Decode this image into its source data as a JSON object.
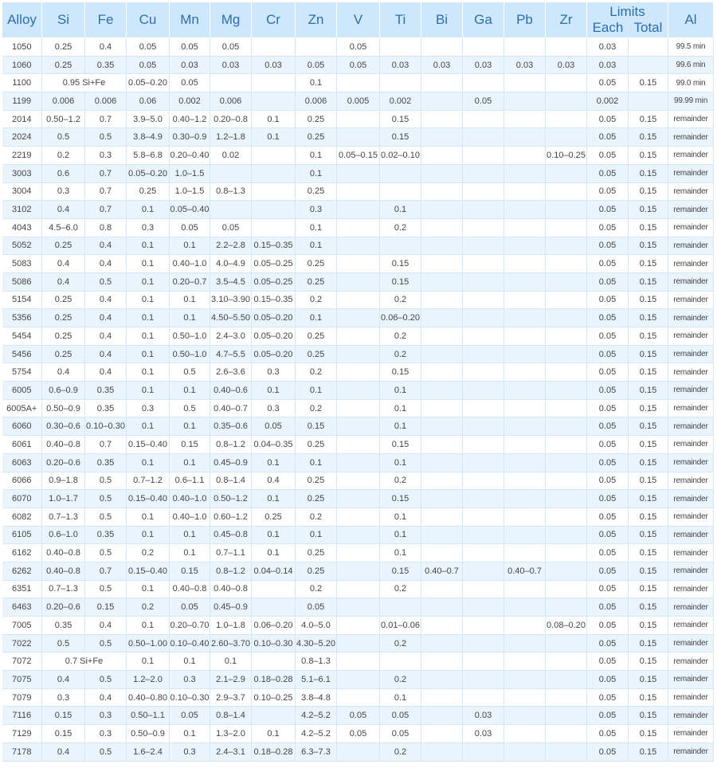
{
  "headers": [
    "Alloy",
    "Si",
    "Fe",
    "Cu",
    "Mn",
    "Mg",
    "Cr",
    "Zn",
    "V",
    "Ti",
    "Bi",
    "Ga",
    "Pb",
    "Zr",
    "Limits",
    "Each",
    "Total",
    "Al"
  ],
  "rows": [
    {
      "alloy": "1050",
      "si": "0.25",
      "fe": "0.4",
      "cu": "0.05",
      "mn": "0.05",
      "mg": "0.05",
      "cr": "",
      "zn": "",
      "v": "0.05",
      "ti": "",
      "bi": "",
      "ga": "",
      "pb": "",
      "zr": "",
      "each": "0.03",
      "total": "",
      "al": "99.5 min"
    },
    {
      "alloy": "1060",
      "si": "0.25",
      "fe": "0.35",
      "cu": "0.05",
      "mn": "0.03",
      "mg": "0.03",
      "cr": "0.03",
      "zn": "0.05",
      "v": "0.05",
      "ti": "0.03",
      "bi": "0.03",
      "ga": "0.03",
      "pb": "0.03",
      "zr": "0.03",
      "each": "0.03",
      "total": "",
      "al": "99.6 min"
    },
    {
      "alloy": "1100",
      "sife": "0.95 Si+Fe",
      "cu": "0.05–0.20",
      "mn": "0.05",
      "mg": "",
      "cr": "",
      "zn": "0.1",
      "v": "",
      "ti": "",
      "bi": "",
      "ga": "",
      "pb": "",
      "zr": "",
      "each": "0.05",
      "total": "0.15",
      "al": "99.0 min"
    },
    {
      "alloy": "1199",
      "si": "0.006",
      "fe": "0.006",
      "cu": "0.06",
      "mn": "0.002",
      "mg": "0.006",
      "cr": "",
      "zn": "0.006",
      "v": "0.005",
      "ti": "0.002",
      "bi": "",
      "ga": "0.05",
      "pb": "",
      "zr": "",
      "each": "0.002",
      "total": "",
      "al": "99.99 min"
    },
    {
      "alloy": "2014",
      "si": "0.50–1.2",
      "fe": "0.7",
      "cu": "3.9–5.0",
      "mn": "0.40–1.2",
      "mg": "0.20–0.8",
      "cr": "0.1",
      "zn": "0.25",
      "v": "",
      "ti": "0.15",
      "bi": "",
      "ga": "",
      "pb": "",
      "zr": "",
      "each": "0.05",
      "total": "0.15",
      "al": "remainder"
    },
    {
      "alloy": "2024",
      "si": "0.5",
      "fe": "0.5",
      "cu": "3.8–4.9",
      "mn": "0.30–0.9",
      "mg": "1.2–1.8",
      "cr": "0.1",
      "zn": "0.25",
      "v": "",
      "ti": "0.15",
      "bi": "",
      "ga": "",
      "pb": "",
      "zr": "",
      "each": "0.05",
      "total": "0.15",
      "al": "remainder"
    },
    {
      "alloy": "2219",
      "si": "0.2",
      "fe": "0.3",
      "cu": "5.8–6.8",
      "mn": "0.20–0.40",
      "mg": "0.02",
      "cr": "",
      "zn": "0.1",
      "v": "0.05–0.15",
      "ti": "0.02–0.10",
      "bi": "",
      "ga": "",
      "pb": "",
      "zr": "0.10–0.25",
      "each": "0.05",
      "total": "0.15",
      "al": "remainder"
    },
    {
      "alloy": "3003",
      "si": "0.6",
      "fe": "0.7",
      "cu": "0.05–0.20",
      "mn": "1.0–1.5",
      "mg": "",
      "cr": "",
      "zn": "0.1",
      "v": "",
      "ti": "",
      "bi": "",
      "ga": "",
      "pb": "",
      "zr": "",
      "each": "0.05",
      "total": "0.15",
      "al": "remainder"
    },
    {
      "alloy": "3004",
      "si": "0.3",
      "fe": "0.7",
      "cu": "0.25",
      "mn": "1.0–1.5",
      "mg": "0.8–1.3",
      "cr": "",
      "zn": "0.25",
      "v": "",
      "ti": "",
      "bi": "",
      "ga": "",
      "pb": "",
      "zr": "",
      "each": "0.05",
      "total": "0.15",
      "al": "remainder"
    },
    {
      "alloy": "3102",
      "si": "0.4",
      "fe": "0.7",
      "cu": "0.1",
      "mn": "0.05–0.40",
      "mg": "",
      "cr": "",
      "zn": "0.3",
      "v": "",
      "ti": "0.1",
      "bi": "",
      "ga": "",
      "pb": "",
      "zr": "",
      "each": "0.05",
      "total": "0.15",
      "al": "remainder"
    },
    {
      "alloy": "4043",
      "si": "4.5–6.0",
      "fe": "0.8",
      "cu": "0.3",
      "mn": "0.05",
      "mg": "0.05",
      "cr": "",
      "zn": "0.1",
      "v": "",
      "ti": "0.2",
      "bi": "",
      "ga": "",
      "pb": "",
      "zr": "",
      "each": "0.05",
      "total": "0.15",
      "al": "remainder"
    },
    {
      "alloy": "5052",
      "si": "0.25",
      "fe": "0.4",
      "cu": "0.1",
      "mn": "0.1",
      "mg": "2.2–2.8",
      "cr": "0.15–0.35",
      "zn": "0.1",
      "v": "",
      "ti": "",
      "bi": "",
      "ga": "",
      "pb": "",
      "zr": "",
      "each": "0.05",
      "total": "0.15",
      "al": "remainder"
    },
    {
      "alloy": "5083",
      "si": "0.4",
      "fe": "0.4",
      "cu": "0.1",
      "mn": "0.40–1.0",
      "mg": "4.0–4.9",
      "cr": "0.05–0.25",
      "zn": "0.25",
      "v": "",
      "ti": "0.15",
      "bi": "",
      "ga": "",
      "pb": "",
      "zr": "",
      "each": "0.05",
      "total": "0.15",
      "al": "remainder"
    },
    {
      "alloy": "5086",
      "si": "0.4",
      "fe": "0.5",
      "cu": "0.1",
      "mn": "0.20–0.7",
      "mg": "3.5–4.5",
      "cr": "0.05–0.25",
      "zn": "0.25",
      "v": "",
      "ti": "0.15",
      "bi": "",
      "ga": "",
      "pb": "",
      "zr": "",
      "each": "0.05",
      "total": "0.15",
      "al": "remainder"
    },
    {
      "alloy": "5154",
      "si": "0.25",
      "fe": "0.4",
      "cu": "0.1",
      "mn": "0.1",
      "mg": "3.10–3.90",
      "cr": "0.15–0.35",
      "zn": "0.2",
      "v": "",
      "ti": "0.2",
      "bi": "",
      "ga": "",
      "pb": "",
      "zr": "",
      "each": "0.05",
      "total": "0.15",
      "al": "remainder"
    },
    {
      "alloy": "5356",
      "si": "0.25",
      "fe": "0.4",
      "cu": "0.1",
      "mn": "0.1",
      "mg": "4.50–5.50",
      "cr": "0.05–0.20",
      "zn": "0.1",
      "v": "",
      "ti": "0.06–0.20",
      "bi": "",
      "ga": "",
      "pb": "",
      "zr": "",
      "each": "0.05",
      "total": "0.15",
      "al": "remainder"
    },
    {
      "alloy": "5454",
      "si": "0.25",
      "fe": "0.4",
      "cu": "0.1",
      "mn": "0.50–1.0",
      "mg": "2.4–3.0",
      "cr": "0.05–0.20",
      "zn": "0.25",
      "v": "",
      "ti": "0.2",
      "bi": "",
      "ga": "",
      "pb": "",
      "zr": "",
      "each": "0.05",
      "total": "0.15",
      "al": "remainder"
    },
    {
      "alloy": "5456",
      "si": "0.25",
      "fe": "0.4",
      "cu": "0.1",
      "mn": "0.50–1.0",
      "mg": "4.7–5.5",
      "cr": "0.05–0.20",
      "zn": "0.25",
      "v": "",
      "ti": "0.2",
      "bi": "",
      "ga": "",
      "pb": "",
      "zr": "",
      "each": "0.05",
      "total": "0.15",
      "al": "remainder"
    },
    {
      "alloy": "5754",
      "si": "0.4",
      "fe": "0.4",
      "cu": "0.1",
      "mn": "0.5",
      "mg": "2.6–3.6",
      "cr": "0.3",
      "zn": "0.2",
      "v": "",
      "ti": "0.15",
      "bi": "",
      "ga": "",
      "pb": "",
      "zr": "",
      "each": "0.05",
      "total": "0.15",
      "al": "remainder"
    },
    {
      "alloy": "6005",
      "si": "0.6–0.9",
      "fe": "0.35",
      "cu": "0.1",
      "mn": "0.1",
      "mg": "0.40–0.6",
      "cr": "0.1",
      "zn": "0.1",
      "v": "",
      "ti": "0.1",
      "bi": "",
      "ga": "",
      "pb": "",
      "zr": "",
      "each": "0.05",
      "total": "0.15",
      "al": "remainder"
    },
    {
      "alloy": "6005A+",
      "si": "0.50–0.9",
      "fe": "0.35",
      "cu": "0.3",
      "mn": "0.5",
      "mg": "0.40–0.7",
      "cr": "0.3",
      "zn": "0.2",
      "v": "",
      "ti": "0.1",
      "bi": "",
      "ga": "",
      "pb": "",
      "zr": "",
      "each": "0.05",
      "total": "0.15",
      "al": "remainder"
    },
    {
      "alloy": "6060",
      "si": "0.30–0.6",
      "fe": "0.10–0.30",
      "cu": "0.1",
      "mn": "0.1",
      "mg": "0.35–0.6",
      "cr": "0.05",
      "zn": "0.15",
      "v": "",
      "ti": "0.1",
      "bi": "",
      "ga": "",
      "pb": "",
      "zr": "",
      "each": "0.05",
      "total": "0.15",
      "al": "remainder"
    },
    {
      "alloy": "6061",
      "si": "0.40–0.8",
      "fe": "0.7",
      "cu": "0.15–0.40",
      "mn": "0.15",
      "mg": "0.8–1.2",
      "cr": "0.04–0.35",
      "zn": "0.25",
      "v": "",
      "ti": "0.15",
      "bi": "",
      "ga": "",
      "pb": "",
      "zr": "",
      "each": "0.05",
      "total": "0.15",
      "al": "remainder"
    },
    {
      "alloy": "6063",
      "si": "0.20–0.6",
      "fe": "0.35",
      "cu": "0.1",
      "mn": "0.1",
      "mg": "0.45–0.9",
      "cr": "0.1",
      "zn": "0.1",
      "v": "",
      "ti": "0.1",
      "bi": "",
      "ga": "",
      "pb": "",
      "zr": "",
      "each": "0.05",
      "total": "0.15",
      "al": "remainder"
    },
    {
      "alloy": "6066",
      "si": "0.9–1.8",
      "fe": "0.5",
      "cu": "0.7–1.2",
      "mn": "0.6–1.1",
      "mg": "0.8–1.4",
      "cr": "0.4",
      "zn": "0.25",
      "v": "",
      "ti": "0.2",
      "bi": "",
      "ga": "",
      "pb": "",
      "zr": "",
      "each": "0.05",
      "total": "0.15",
      "al": "remainder"
    },
    {
      "alloy": "6070",
      "si": "1.0–1.7",
      "fe": "0.5",
      "cu": "0.15–0.40",
      "mn": "0.40–1.0",
      "mg": "0.50–1.2",
      "cr": "0.1",
      "zn": "0.25",
      "v": "",
      "ti": "0.15",
      "bi": "",
      "ga": "",
      "pb": "",
      "zr": "",
      "each": "0.05",
      "total": "0.15",
      "al": "remainder"
    },
    {
      "alloy": "6082",
      "si": "0.7–1.3",
      "fe": "0.5",
      "cu": "0.1",
      "mn": "0.40–1.0",
      "mg": "0.60–1.2",
      "cr": "0.25",
      "zn": "0.2",
      "v": "",
      "ti": "0.1",
      "bi": "",
      "ga": "",
      "pb": "",
      "zr": "",
      "each": "0.05",
      "total": "0.15",
      "al": "remainder"
    },
    {
      "alloy": "6105",
      "si": "0.6–1.0",
      "fe": "0.35",
      "cu": "0.1",
      "mn": "0.1",
      "mg": "0.45–0.8",
      "cr": "0.1",
      "zn": "0.1",
      "v": "",
      "ti": "0.1",
      "bi": "",
      "ga": "",
      "pb": "",
      "zr": "",
      "each": "0.05",
      "total": "0.15",
      "al": "remainder"
    },
    {
      "alloy": "6162",
      "si": "0.40–0.8",
      "fe": "0.5",
      "cu": "0.2",
      "mn": "0.1",
      "mg": "0.7–1.1",
      "cr": "0.1",
      "zn": "0.25",
      "v": "",
      "ti": "0.1",
      "bi": "",
      "ga": "",
      "pb": "",
      "zr": "",
      "each": "0.05",
      "total": "0.15",
      "al": "remainder"
    },
    {
      "alloy": "6262",
      "si": "0.40–0.8",
      "fe": "0.7",
      "cu": "0.15–0.40",
      "mn": "0.15",
      "mg": "0.8–1.2",
      "cr": "0.04–0.14",
      "zn": "0.25",
      "v": "",
      "ti": "0.15",
      "bi": "0.40–0.7",
      "ga": "",
      "pb": "0.40–0.7",
      "zr": "",
      "each": "0.05",
      "total": "0.15",
      "al": "remainder"
    },
    {
      "alloy": "6351",
      "si": "0.7–1.3",
      "fe": "0.5",
      "cu": "0.1",
      "mn": "0.40–0.8",
      "mg": "0.40–0.8",
      "cr": "",
      "zn": "0.2",
      "v": "",
      "ti": "0.2",
      "bi": "",
      "ga": "",
      "pb": "",
      "zr": "",
      "each": "0.05",
      "total": "0.15",
      "al": "remainder"
    },
    {
      "alloy": "6463",
      "si": "0.20–0.6",
      "fe": "0.15",
      "cu": "0.2",
      "mn": "0.05",
      "mg": "0.45–0.9",
      "cr": "",
      "zn": "0.05",
      "v": "",
      "ti": "",
      "bi": "",
      "ga": "",
      "pb": "",
      "zr": "",
      "each": "0.05",
      "total": "0.15",
      "al": "remainder"
    },
    {
      "alloy": "7005",
      "si": "0.35",
      "fe": "0.4",
      "cu": "0.1",
      "mn": "0.20–0.70",
      "mg": "1.0–1.8",
      "cr": "0.06–0.20",
      "zn": "4.0–5.0",
      "v": "",
      "ti": "0.01–0.06",
      "bi": "",
      "ga": "",
      "pb": "",
      "zr": "0.08–0.20",
      "each": "0.05",
      "total": "0.15",
      "al": "remainder"
    },
    {
      "alloy": "7022",
      "si": "0.5",
      "fe": "0.5",
      "cu": "0.50–1.00",
      "mn": "0.10–0.40",
      "mg": "2.60–3.70",
      "cr": "0.10–0.30",
      "zn": "4.30–5.20",
      "v": "",
      "ti": "0.2",
      "bi": "",
      "ga": "",
      "pb": "",
      "zr": "",
      "each": "0.05",
      "total": "0.15",
      "al": "remainder"
    },
    {
      "alloy": "7072",
      "sife": "0.7 Si+Fe",
      "cu": "0.1",
      "mn": "0.1",
      "mg": "0.1",
      "cr": "",
      "zn": "0.8–1.3",
      "v": "",
      "ti": "",
      "bi": "",
      "ga": "",
      "pb": "",
      "zr": "",
      "each": "0.05",
      "total": "0.15",
      "al": "remainder"
    },
    {
      "alloy": "7075",
      "si": "0.4",
      "fe": "0.5",
      "cu": "1.2–2.0",
      "mn": "0.3",
      "mg": "2.1–2.9",
      "cr": "0.18–0.28",
      "zn": "5.1–6.1",
      "v": "",
      "ti": "0.2",
      "bi": "",
      "ga": "",
      "pb": "",
      "zr": "",
      "each": "0.05",
      "total": "0.15",
      "al": "remainder"
    },
    {
      "alloy": "7079",
      "si": "0.3",
      "fe": "0.4",
      "cu": "0.40–0.80",
      "mn": "0.10–0.30",
      "mg": "2.9–3.7",
      "cr": "0.10–0.25",
      "zn": "3.8–4.8",
      "v": "",
      "ti": "0.1",
      "bi": "",
      "ga": "",
      "pb": "",
      "zr": "",
      "each": "0.05",
      "total": "0.15",
      "al": "remainder"
    },
    {
      "alloy": "7116",
      "si": "0.15",
      "fe": "0.3",
      "cu": "0.50–1.1",
      "mn": "0.05",
      "mg": "0.8–1.4",
      "cr": "",
      "zn": "4.2–5.2",
      "v": "0.05",
      "ti": "0.05",
      "bi": "",
      "ga": "0.03",
      "pb": "",
      "zr": "",
      "each": "0.05",
      "total": "0.15",
      "al": "remainder"
    },
    {
      "alloy": "7129",
      "si": "0.15",
      "fe": "0.3",
      "cu": "0.50–0.9",
      "mn": "0.1",
      "mg": "1.3–2.0",
      "cr": "0.1",
      "zn": "4.2–5.2",
      "v": "0.05",
      "ti": "0.05",
      "bi": "",
      "ga": "0.03",
      "pb": "",
      "zr": "",
      "each": "0.05",
      "total": "0.15",
      "al": "remainder"
    },
    {
      "alloy": "7178",
      "si": "0.4",
      "fe": "0.5",
      "cu": "1.6–2.4",
      "mn": "0.3",
      "mg": "2.4–3.1",
      "cr": "0.18–0.28",
      "zn": "6.3–7.3",
      "v": "",
      "ti": "0.2",
      "bi": "",
      "ga": "",
      "pb": "",
      "zr": "",
      "each": "0.05",
      "total": "0.15",
      "al": "remainder"
    }
  ]
}
